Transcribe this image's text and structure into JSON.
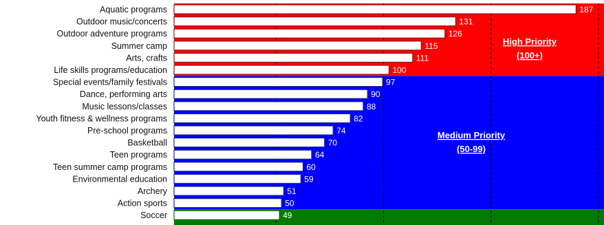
{
  "chart_data": {
    "type": "bar",
    "orientation": "horizontal",
    "categories": [
      "Aquatic programs",
      "Outdoor music/concerts",
      "Outdoor adventure programs",
      "Summer camp",
      "Arts, crafts",
      "Life skills programs/education",
      "Special events/family festivals",
      "Dance, performing arts",
      "Music lessons/classes",
      "Youth fitness & wellness programs",
      "Pre-school programs",
      "Basketball",
      "Teen programs",
      "Teen summer camp programs",
      "Environmental education",
      "Archery",
      "Action sports",
      "Soccer"
    ],
    "values": [
      187,
      131,
      126,
      115,
      111,
      100,
      97,
      90,
      88,
      82,
      74,
      70,
      64,
      60,
      59,
      51,
      50,
      49
    ],
    "bar_border_colors": [
      "#8b1a1a",
      "#8b1a1a",
      "#8b1a1a",
      "#8b1a1a",
      "#8b1a1a",
      "#8b1a1a",
      "#1f2a8c",
      "#1f2a8c",
      "#1f2a8c",
      "#1f2a8c",
      "#1f2a8c",
      "#1f2a8c",
      "#1f2a8c",
      "#1f2a8c",
      "#1f2a8c",
      "#1f2a8c",
      "#1f2a8c",
      "#1a6b1a"
    ],
    "xlim": [
      0,
      200
    ],
    "gridlines_x": [
      50,
      100,
      150,
      200
    ],
    "zones": [
      {
        "label": "High Priority",
        "range": "(100+)",
        "color": "#ff0000"
      },
      {
        "label": "Medium Priority",
        "range": "(50-99)",
        "color": "#0000ff"
      },
      {
        "label": "",
        "range": "",
        "color": "#007a00"
      }
    ],
    "title": "",
    "xlabel": "",
    "ylabel": ""
  }
}
